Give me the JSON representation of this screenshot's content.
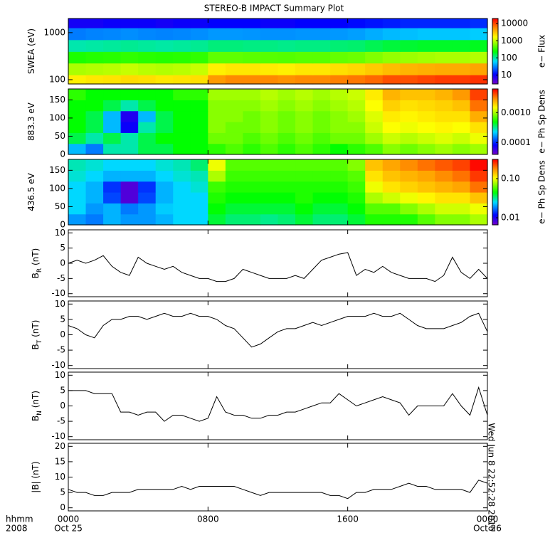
{
  "chart_data": [
    {
      "type": "heatmap",
      "title": "STEREO-B IMPACT Summary Plot",
      "ylabel": [
        "SWEA (eV)"
      ],
      "ylog": true,
      "ylim": [
        81,
        2000
      ],
      "yticks": [
        100,
        1000
      ],
      "colormap": "rainbow",
      "y": [
        95,
        170,
        300,
        530,
        950,
        1700
      ],
      "values": [
        [
          2000,
          2200,
          2300,
          2500,
          2400,
          2200,
          2300,
          2400,
          5000,
          6000,
          6000,
          6000,
          5500,
          6000,
          6000,
          6500,
          7000,
          8000,
          10000,
          10000,
          11000,
          12000,
          12000,
          13000
        ],
        [
          900,
          950,
          1000,
          1100,
          1000,
          950,
          1000,
          1100,
          2000,
          2200,
          2200,
          2100,
          2000,
          2200,
          2200,
          2400,
          2600,
          3000,
          3500,
          3800,
          4000,
          4200,
          4200,
          4500
        ],
        [
          300,
          320,
          330,
          350,
          330,
          320,
          330,
          350,
          500,
          500,
          480,
          470,
          460,
          480,
          480,
          520,
          550,
          650,
          750,
          800,
          850,
          900,
          900,
          950
        ],
        [
          100,
          105,
          110,
          115,
          110,
          105,
          110,
          115,
          130,
          130,
          125,
          125,
          120,
          125,
          125,
          135,
          140,
          160,
          180,
          190,
          200,
          200,
          200,
          210
        ],
        [
          30,
          32,
          33,
          35,
          33,
          32,
          33,
          35,
          38,
          38,
          37,
          36,
          36,
          37,
          37,
          38,
          40,
          45,
          50,
          52,
          55,
          55,
          55,
          58
        ],
        [
          9,
          9,
          10,
          10,
          10,
          9,
          10,
          10,
          11,
          11,
          11,
          10,
          10,
          11,
          11,
          11,
          12,
          13,
          14,
          15,
          15,
          15,
          15,
          16
        ]
      ],
      "colorbar": {
        "title": "e− Flux",
        "log": true,
        "clim": [
          3,
          20000
        ],
        "ticks": [
          10,
          100,
          1000,
          10000
        ]
      }
    },
    {
      "type": "heatmap",
      "ylabel": [
        "883.3 eV"
      ],
      "ylog": false,
      "ylim": [
        0,
        180
      ],
      "yticks": [
        0,
        50,
        100,
        150
      ],
      "colormap": "rainbow",
      "y": [
        15,
        45,
        75,
        105,
        135,
        165
      ],
      "values": [
        [
          0.0002,
          0.00015,
          0.0003,
          0.0003,
          0.0004,
          0.0004,
          0.0005,
          0.0005,
          0.0006,
          0.0007,
          0.0006,
          0.0007,
          0.0006,
          0.0007,
          0.0006,
          0.0005,
          0.0006,
          0.0007,
          0.0009,
          0.0008,
          0.0009,
          0.001,
          0.0009,
          0.001
        ],
        [
          0.0004,
          0.0003,
          0.0004,
          0.0003,
          0.0004,
          0.0005,
          0.0005,
          0.0005,
          0.0008,
          0.0008,
          0.0007,
          0.0008,
          0.0007,
          0.0008,
          0.0007,
          0.0008,
          0.0008,
          0.001,
          0.0012,
          0.0011,
          0.0012,
          0.0013,
          0.0012,
          0.0014
        ],
        [
          0.0005,
          0.0004,
          0.0002,
          8e-05,
          0.0003,
          0.0004,
          0.0005,
          0.0005,
          0.0009,
          0.0008,
          0.0008,
          0.0009,
          0.0008,
          0.0009,
          0.0008,
          0.0009,
          0.0009,
          0.0012,
          0.0015,
          0.0014,
          0.0015,
          0.0016,
          0.0015,
          0.0018
        ],
        [
          0.0005,
          0.0004,
          0.0002,
          7e-05,
          0.0002,
          0.0004,
          0.0005,
          0.0005,
          0.0009,
          0.0009,
          0.0008,
          0.0009,
          0.0008,
          0.0009,
          0.0008,
          0.0009,
          0.001,
          0.0013,
          0.0017,
          0.0016,
          0.0017,
          0.0018,
          0.0018,
          0.0025
        ],
        [
          0.0005,
          0.0005,
          0.0004,
          0.0003,
          0.0004,
          0.0005,
          0.0005,
          0.0005,
          0.0009,
          0.0009,
          0.0009,
          0.001,
          0.0009,
          0.001,
          0.0009,
          0.001,
          0.0011,
          0.0015,
          0.002,
          0.0018,
          0.0019,
          0.002,
          0.0022,
          0.0035
        ],
        [
          0.0006,
          0.0005,
          0.0005,
          0.0005,
          0.0005,
          0.0005,
          0.0006,
          0.0006,
          0.001,
          0.001,
          0.001,
          0.0011,
          0.001,
          0.0011,
          0.001,
          0.0011,
          0.0012,
          0.0017,
          0.0024,
          0.0022,
          0.0022,
          0.0024,
          0.0028,
          0.0045
        ]
      ],
      "colorbar": {
        "title": "e− Ph Sp Dens",
        "log": true,
        "clim": [
          4e-05,
          0.0062
        ],
        "ticks": [
          0.0001,
          {
            "value": 0.001,
            "label": "0.0010"
          }
        ]
      }
    },
    {
      "type": "heatmap",
      "ylabel": [
        "436.5 eV"
      ],
      "ylog": false,
      "ylim": [
        0,
        180
      ],
      "yticks": [
        0,
        50,
        100,
        150
      ],
      "colormap": "rainbow",
      "y": [
        15,
        45,
        75,
        105,
        135,
        165
      ],
      "values": [
        [
          0.02,
          0.018,
          0.022,
          0.02,
          0.02,
          0.022,
          0.025,
          0.025,
          0.04,
          0.035,
          0.035,
          0.033,
          0.035,
          0.04,
          0.035,
          0.035,
          0.04,
          0.05,
          0.05,
          0.05,
          0.06,
          0.07,
          0.07,
          0.08
        ],
        [
          0.025,
          0.02,
          0.022,
          0.018,
          0.02,
          0.024,
          0.025,
          0.025,
          0.045,
          0.04,
          0.04,
          0.04,
          0.04,
          0.045,
          0.04,
          0.04,
          0.045,
          0.06,
          0.06,
          0.07,
          0.08,
          0.09,
          0.09,
          0.1
        ],
        [
          0.025,
          0.022,
          0.015,
          0.008,
          0.015,
          0.022,
          0.025,
          0.025,
          0.05,
          0.045,
          0.045,
          0.045,
          0.045,
          0.05,
          0.045,
          0.045,
          0.05,
          0.08,
          0.09,
          0.1,
          0.11,
          0.12,
          0.12,
          0.14
        ],
        [
          0.025,
          0.022,
          0.014,
          0.008,
          0.014,
          0.022,
          0.025,
          0.028,
          0.055,
          0.05,
          0.05,
          0.05,
          0.05,
          0.05,
          0.05,
          0.05,
          0.055,
          0.1,
          0.12,
          0.13,
          0.14,
          0.15,
          0.16,
          0.2
        ],
        [
          0.028,
          0.025,
          0.022,
          0.022,
          0.022,
          0.025,
          0.028,
          0.03,
          0.08,
          0.055,
          0.055,
          0.055,
          0.055,
          0.055,
          0.055,
          0.055,
          0.06,
          0.12,
          0.14,
          0.15,
          0.16,
          0.18,
          0.2,
          0.25
        ],
        [
          0.03,
          0.028,
          0.025,
          0.025,
          0.025,
          0.028,
          0.03,
          0.035,
          0.1,
          0.06,
          0.06,
          0.06,
          0.06,
          0.06,
          0.06,
          0.06,
          0.07,
          0.14,
          0.16,
          0.18,
          0.2,
          0.22,
          0.24,
          0.3
        ]
      ],
      "colorbar": {
        "title": "e− Ph Sp Dens",
        "log": true,
        "clim": [
          0.0066,
          0.31
        ],
        "ticks": [
          0.01,
          {
            "value": 0.1,
            "label": "0.10"
          }
        ]
      }
    },
    {
      "type": "line",
      "ylabel": [
        "B",
        "R",
        " (nT)"
      ],
      "ylim": [
        -11,
        11
      ],
      "yticks": [
        -10,
        -5,
        0,
        5,
        10
      ],
      "color": "#000000",
      "x": [
        0,
        0.5,
        1,
        1.5,
        2,
        2.5,
        3,
        3.5,
        4,
        4.5,
        5,
        5.5,
        6,
        6.5,
        7,
        7.5,
        8,
        8.5,
        9,
        9.5,
        10,
        10.5,
        11,
        11.5,
        12,
        12.5,
        13,
        13.5,
        14,
        14.5,
        15,
        15.5,
        16,
        16.5,
        17,
        17.5,
        18,
        18.5,
        19,
        19.5,
        20,
        20.5,
        21,
        21.5,
        22,
        22.5,
        23,
        23.5,
        24
      ],
      "values": [
        0,
        1,
        0,
        1,
        2.5,
        -1,
        -3,
        -4,
        2,
        0,
        -1,
        -2,
        -1,
        -3,
        -4,
        -5,
        -5,
        -6,
        -6,
        -5,
        -2,
        -3,
        -4,
        -5,
        -5,
        -5,
        -4,
        -5,
        -2,
        1,
        2,
        3,
        3.5,
        -4,
        -2,
        -3,
        -1,
        -3,
        -4,
        -5,
        -5,
        -5,
        -6,
        -4,
        2,
        -3,
        -5,
        -2,
        -5
      ]
    },
    {
      "type": "line",
      "ylabel": [
        "B",
        "T",
        " (nT)"
      ],
      "ylim": [
        -11,
        11
      ],
      "yticks": [
        -10,
        -5,
        0,
        5,
        10
      ],
      "color": "#000000",
      "x": [
        0,
        0.5,
        1,
        1.5,
        2,
        2.5,
        3,
        3.5,
        4,
        4.5,
        5,
        5.5,
        6,
        6.5,
        7,
        7.5,
        8,
        8.5,
        9,
        9.5,
        10,
        10.5,
        11,
        11.5,
        12,
        12.5,
        13,
        13.5,
        14,
        14.5,
        15,
        15.5,
        16,
        16.5,
        17,
        17.5,
        18,
        18.5,
        19,
        19.5,
        20,
        20.5,
        21,
        21.5,
        22,
        22.5,
        23,
        23.5,
        24
      ],
      "values": [
        3,
        2,
        0,
        -1,
        3,
        5,
        5,
        6,
        6,
        5,
        6,
        7,
        6,
        6,
        7,
        6,
        6,
        5,
        3,
        2,
        -1,
        -4,
        -3,
        -1,
        1,
        2,
        2,
        3,
        4,
        3,
        4,
        5,
        6,
        6,
        6,
        7,
        6,
        6,
        7,
        5,
        3,
        2,
        2,
        2,
        3,
        4,
        6,
        7,
        1
      ]
    },
    {
      "type": "line",
      "ylabel": [
        "B",
        "N",
        " (nT)"
      ],
      "ylim": [
        -11,
        11
      ],
      "yticks": [
        -10,
        -5,
        0,
        5,
        10
      ],
      "color": "#000000",
      "x": [
        0,
        0.5,
        1,
        1.5,
        2,
        2.5,
        3,
        3.5,
        4,
        4.5,
        5,
        5.5,
        6,
        6.5,
        7,
        7.5,
        8,
        8.5,
        9,
        9.5,
        10,
        10.5,
        11,
        11.5,
        12,
        12.5,
        13,
        13.5,
        14,
        14.5,
        15,
        15.5,
        16,
        16.5,
        17,
        17.5,
        18,
        18.5,
        19,
        19.5,
        20,
        20.5,
        21,
        21.5,
        22,
        22.5,
        23,
        23.5,
        24
      ],
      "values": [
        5,
        5,
        5,
        4,
        4,
        4,
        -2,
        -2,
        -3,
        -2,
        -2,
        -5,
        -3,
        -3,
        -4,
        -5,
        -4,
        3,
        -2,
        -3,
        -3,
        -4,
        -4,
        -3,
        -3,
        -2,
        -2,
        -1,
        0,
        1,
        1,
        4,
        2,
        0,
        1,
        2,
        3,
        2,
        1,
        -3,
        0,
        0,
        0,
        0,
        4,
        0,
        -3,
        6,
        -3
      ]
    },
    {
      "type": "line",
      "ylabel": [
        "|B| (nT)"
      ],
      "ylim": [
        -1,
        21
      ],
      "yticks": [
        0,
        5,
        10,
        15,
        20
      ],
      "color": "#000000",
      "x": [
        0,
        0.5,
        1,
        1.5,
        2,
        2.5,
        3,
        3.5,
        4,
        4.5,
        5,
        5.5,
        6,
        6.5,
        7,
        7.5,
        8,
        8.5,
        9,
        9.5,
        10,
        10.5,
        11,
        11.5,
        12,
        12.5,
        13,
        13.5,
        14,
        14.5,
        15,
        15.5,
        16,
        16.5,
        17,
        17.5,
        18,
        18.5,
        19,
        19.5,
        20,
        20.5,
        21,
        21.5,
        22,
        22.5,
        23,
        23.5,
        24
      ],
      "values": [
        6,
        5,
        5,
        4,
        4,
        5,
        5,
        5,
        6,
        6,
        6,
        6,
        6,
        7,
        6,
        7,
        7,
        7,
        7,
        7,
        6,
        5,
        4,
        5,
        5,
        5,
        5,
        5,
        5,
        5,
        4,
        4,
        3,
        5,
        5,
        6,
        6,
        6,
        7,
        8,
        7,
        7,
        6,
        6,
        6,
        6,
        5,
        9,
        8
      ],
      "xlim": [
        0,
        24
      ],
      "xticks": [
        {
          "value": 0,
          "label": "0000"
        },
        {
          "value": 8,
          "label": "0800"
        },
        {
          "value": 16,
          "label": "1600"
        },
        {
          "value": 24,
          "label": "0000"
        }
      ],
      "date_labels": [
        {
          "value": 0,
          "label": "Oct 25"
        },
        {
          "value": 24,
          "label": "Oct 26"
        }
      ],
      "axis_header": [
        "hhmm",
        "2008"
      ],
      "stamp": "Wed Jun  8 22:52:28 2016"
    }
  ]
}
